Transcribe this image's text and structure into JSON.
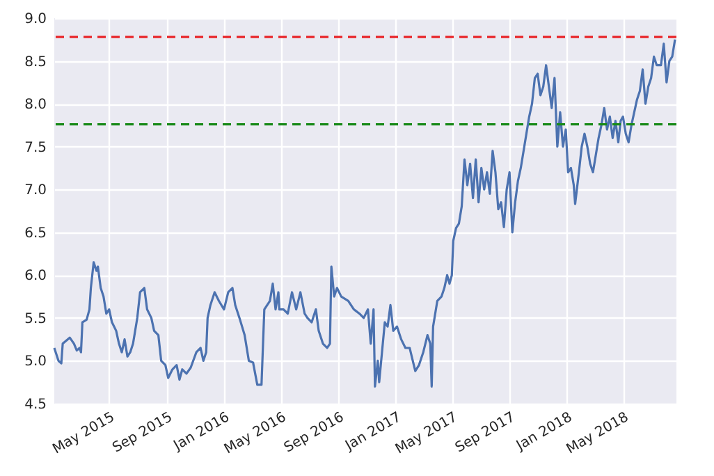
{
  "chart_data": {
    "type": "line",
    "x": [
      "2015-01-04",
      "2015-01-13",
      "2015-01-19",
      "2015-01-22",
      "2015-02-06",
      "2015-02-15",
      "2015-02-21",
      "2015-02-27",
      "2015-03-02",
      "2015-03-05",
      "2015-03-14",
      "2015-03-20",
      "2015-03-23",
      "2015-03-29",
      "2015-04-04",
      "2015-04-07",
      "2015-04-13",
      "2015-04-19",
      "2015-04-25",
      "2015-05-01",
      "2015-05-07",
      "2015-05-16",
      "2015-05-22",
      "2015-05-28",
      "2015-06-03",
      "2015-06-09",
      "2015-06-15",
      "2015-06-21",
      "2015-06-30",
      "2015-07-06",
      "2015-07-15",
      "2015-07-21",
      "2015-07-30",
      "2015-08-05",
      "2015-08-14",
      "2015-08-20",
      "2015-08-29",
      "2015-09-04",
      "2015-09-13",
      "2015-09-22",
      "2015-09-28",
      "2015-10-04",
      "2015-10-13",
      "2015-10-22",
      "2015-11-03",
      "2015-11-12",
      "2015-11-18",
      "2015-11-24",
      "2015-11-27",
      "2015-12-03",
      "2015-12-12",
      "2015-12-21",
      "2016-01-01",
      "2016-01-10",
      "2016-01-19",
      "2016-01-25",
      "2016-02-03",
      "2016-02-14",
      "2016-02-23",
      "2016-03-03",
      "2016-03-12",
      "2016-03-21",
      "2016-03-27",
      "2016-04-08",
      "2016-04-14",
      "2016-04-20",
      "2016-04-26",
      "2016-04-28",
      "2016-05-07",
      "2016-05-16",
      "2016-05-25",
      "2016-06-03",
      "2016-06-12",
      "2016-06-21",
      "2016-06-27",
      "2016-07-06",
      "2016-07-15",
      "2016-07-21",
      "2016-07-30",
      "2016-08-08",
      "2016-08-14",
      "2016-08-17",
      "2016-08-23",
      "2016-08-29",
      "2016-09-07",
      "2016-09-22",
      "2016-10-04",
      "2016-10-16",
      "2016-10-25",
      "2016-11-03",
      "2016-11-09",
      "2016-11-15",
      "2016-11-18",
      "2016-11-24",
      "2016-11-27",
      "2016-12-03",
      "2016-12-09",
      "2016-12-15",
      "2016-12-21",
      "2016-12-27",
      "2017-01-04",
      "2017-01-13",
      "2017-01-22",
      "2017-01-31",
      "2017-02-12",
      "2017-02-20",
      "2017-03-01",
      "2017-03-10",
      "2017-03-16",
      "2017-03-19",
      "2017-03-22",
      "2017-03-31",
      "2017-04-09",
      "2017-04-15",
      "2017-04-21",
      "2017-04-26",
      "2017-05-01",
      "2017-05-04",
      "2017-05-10",
      "2017-05-16",
      "2017-05-22",
      "2017-05-28",
      "2017-06-03",
      "2017-06-09",
      "2017-06-15",
      "2017-06-21",
      "2017-06-27",
      "2017-07-03",
      "2017-07-09",
      "2017-07-15",
      "2017-07-21",
      "2017-07-27",
      "2017-08-02",
      "2017-08-08",
      "2017-08-14",
      "2017-08-20",
      "2017-08-26",
      "2017-09-01",
      "2017-09-07",
      "2017-09-13",
      "2017-09-19",
      "2017-09-25",
      "2017-10-04",
      "2017-10-13",
      "2017-10-19",
      "2017-10-25",
      "2017-10-31",
      "2017-11-06",
      "2017-11-12",
      "2017-11-18",
      "2017-11-24",
      "2017-11-30",
      "2017-12-06",
      "2017-12-12",
      "2017-12-18",
      "2017-12-24",
      "2017-12-30",
      "2018-01-04",
      "2018-01-10",
      "2018-01-16",
      "2018-01-19",
      "2018-01-27",
      "2018-02-02",
      "2018-02-08",
      "2018-02-14",
      "2018-02-20",
      "2018-02-26",
      "2018-03-04",
      "2018-03-10",
      "2018-03-16",
      "2018-03-22",
      "2018-03-28",
      "2018-04-03",
      "2018-04-09",
      "2018-04-15",
      "2018-04-21",
      "2018-04-26",
      "2018-05-01",
      "2018-05-07",
      "2018-05-13",
      "2018-05-19",
      "2018-05-25",
      "2018-05-31",
      "2018-06-06",
      "2018-06-12",
      "2018-06-18",
      "2018-06-24",
      "2018-06-30",
      "2018-07-06",
      "2018-07-12",
      "2018-07-21",
      "2018-07-27",
      "2018-08-02",
      "2018-08-08",
      "2018-08-14",
      "2018-08-20"
    ],
    "series": [
      {
        "color": "#4c72b0",
        "values": [
          5.15,
          5.0,
          4.97,
          5.2,
          5.27,
          5.2,
          5.12,
          5.15,
          5.1,
          5.45,
          5.48,
          5.6,
          5.85,
          6.15,
          6.05,
          6.1,
          5.85,
          5.75,
          5.55,
          5.6,
          5.45,
          5.35,
          5.2,
          5.1,
          5.25,
          5.05,
          5.1,
          5.2,
          5.5,
          5.8,
          5.85,
          5.6,
          5.5,
          5.35,
          5.3,
          5.0,
          4.95,
          4.8,
          4.9,
          4.95,
          4.78,
          4.9,
          4.85,
          4.92,
          5.1,
          5.15,
          5.0,
          5.1,
          5.5,
          5.65,
          5.8,
          5.7,
          5.6,
          5.8,
          5.85,
          5.65,
          5.5,
          5.3,
          5.0,
          4.98,
          4.72,
          4.72,
          5.6,
          5.7,
          5.9,
          5.6,
          5.8,
          5.6,
          5.6,
          5.55,
          5.8,
          5.6,
          5.8,
          5.55,
          5.5,
          5.45,
          5.6,
          5.35,
          5.2,
          5.15,
          5.2,
          6.1,
          5.75,
          5.85,
          5.75,
          5.7,
          5.6,
          5.55,
          5.5,
          5.6,
          5.2,
          5.6,
          4.7,
          5.0,
          4.75,
          5.1,
          5.45,
          5.4,
          5.65,
          5.35,
          5.4,
          5.25,
          5.15,
          5.15,
          4.88,
          4.95,
          5.1,
          5.3,
          5.2,
          4.7,
          5.4,
          5.7,
          5.75,
          5.85,
          6.0,
          5.9,
          6.0,
          6.4,
          6.55,
          6.6,
          6.8,
          7.35,
          7.05,
          7.3,
          6.9,
          7.35,
          6.85,
          7.25,
          7.0,
          7.2,
          6.95,
          7.45,
          7.2,
          6.77,
          6.85,
          6.56,
          7.0,
          7.2,
          6.5,
          6.85,
          7.1,
          7.25,
          7.55,
          7.85,
          8.0,
          8.3,
          8.35,
          8.1,
          8.2,
          8.45,
          8.2,
          7.95,
          8.3,
          7.5,
          7.9,
          7.5,
          7.7,
          7.2,
          7.25,
          7.05,
          6.83,
          7.2,
          7.5,
          7.65,
          7.5,
          7.3,
          7.2,
          7.4,
          7.6,
          7.75,
          7.95,
          7.7,
          7.85,
          7.6,
          7.8,
          7.55,
          7.8,
          7.85,
          7.65,
          7.55,
          7.75,
          7.9,
          8.05,
          8.15,
          8.4,
          8.0,
          8.2,
          8.3,
          8.55,
          8.45,
          8.45,
          8.7,
          8.25,
          8.5,
          8.55,
          8.75
        ]
      }
    ],
    "xlim": [
      "2015-01-04",
      "2018-08-23"
    ],
    "xticks": [
      {
        "value": "2015-05-01",
        "label": "May 2015"
      },
      {
        "value": "2015-09-01",
        "label": "Sep 2015"
      },
      {
        "value": "2016-01-01",
        "label": "Jan 2016"
      },
      {
        "value": "2016-05-01",
        "label": "May 2016"
      },
      {
        "value": "2016-09-01",
        "label": "Sep 2016"
      },
      {
        "value": "2017-01-01",
        "label": "Jan 2017"
      },
      {
        "value": "2017-05-01",
        "label": "May 2017"
      },
      {
        "value": "2017-09-01",
        "label": "Sep 2017"
      },
      {
        "value": "2018-01-01",
        "label": "Jan 2018"
      },
      {
        "value": "2018-05-01",
        "label": "May 2018"
      }
    ],
    "ylim": [
      4.5,
      9.0
    ],
    "yticks": [
      4.5,
      {
        "value": 5,
        "label": "5.0"
      },
      5.5,
      {
        "value": 6,
        "label": "6.0"
      },
      6.5,
      {
        "value": 7,
        "label": "7.0"
      },
      7.5,
      {
        "value": 8,
        "label": "8.0"
      },
      8.5,
      {
        "value": 9,
        "label": "9.0"
      }
    ],
    "ref_lines": [
      {
        "axis": "y",
        "value": 8.78,
        "color": "#e8262a",
        "line_style": "dashed"
      },
      {
        "axis": "y",
        "value": 7.76,
        "color": "#1a8a1a",
        "line_style": "dashed"
      }
    ],
    "grid": true
  }
}
